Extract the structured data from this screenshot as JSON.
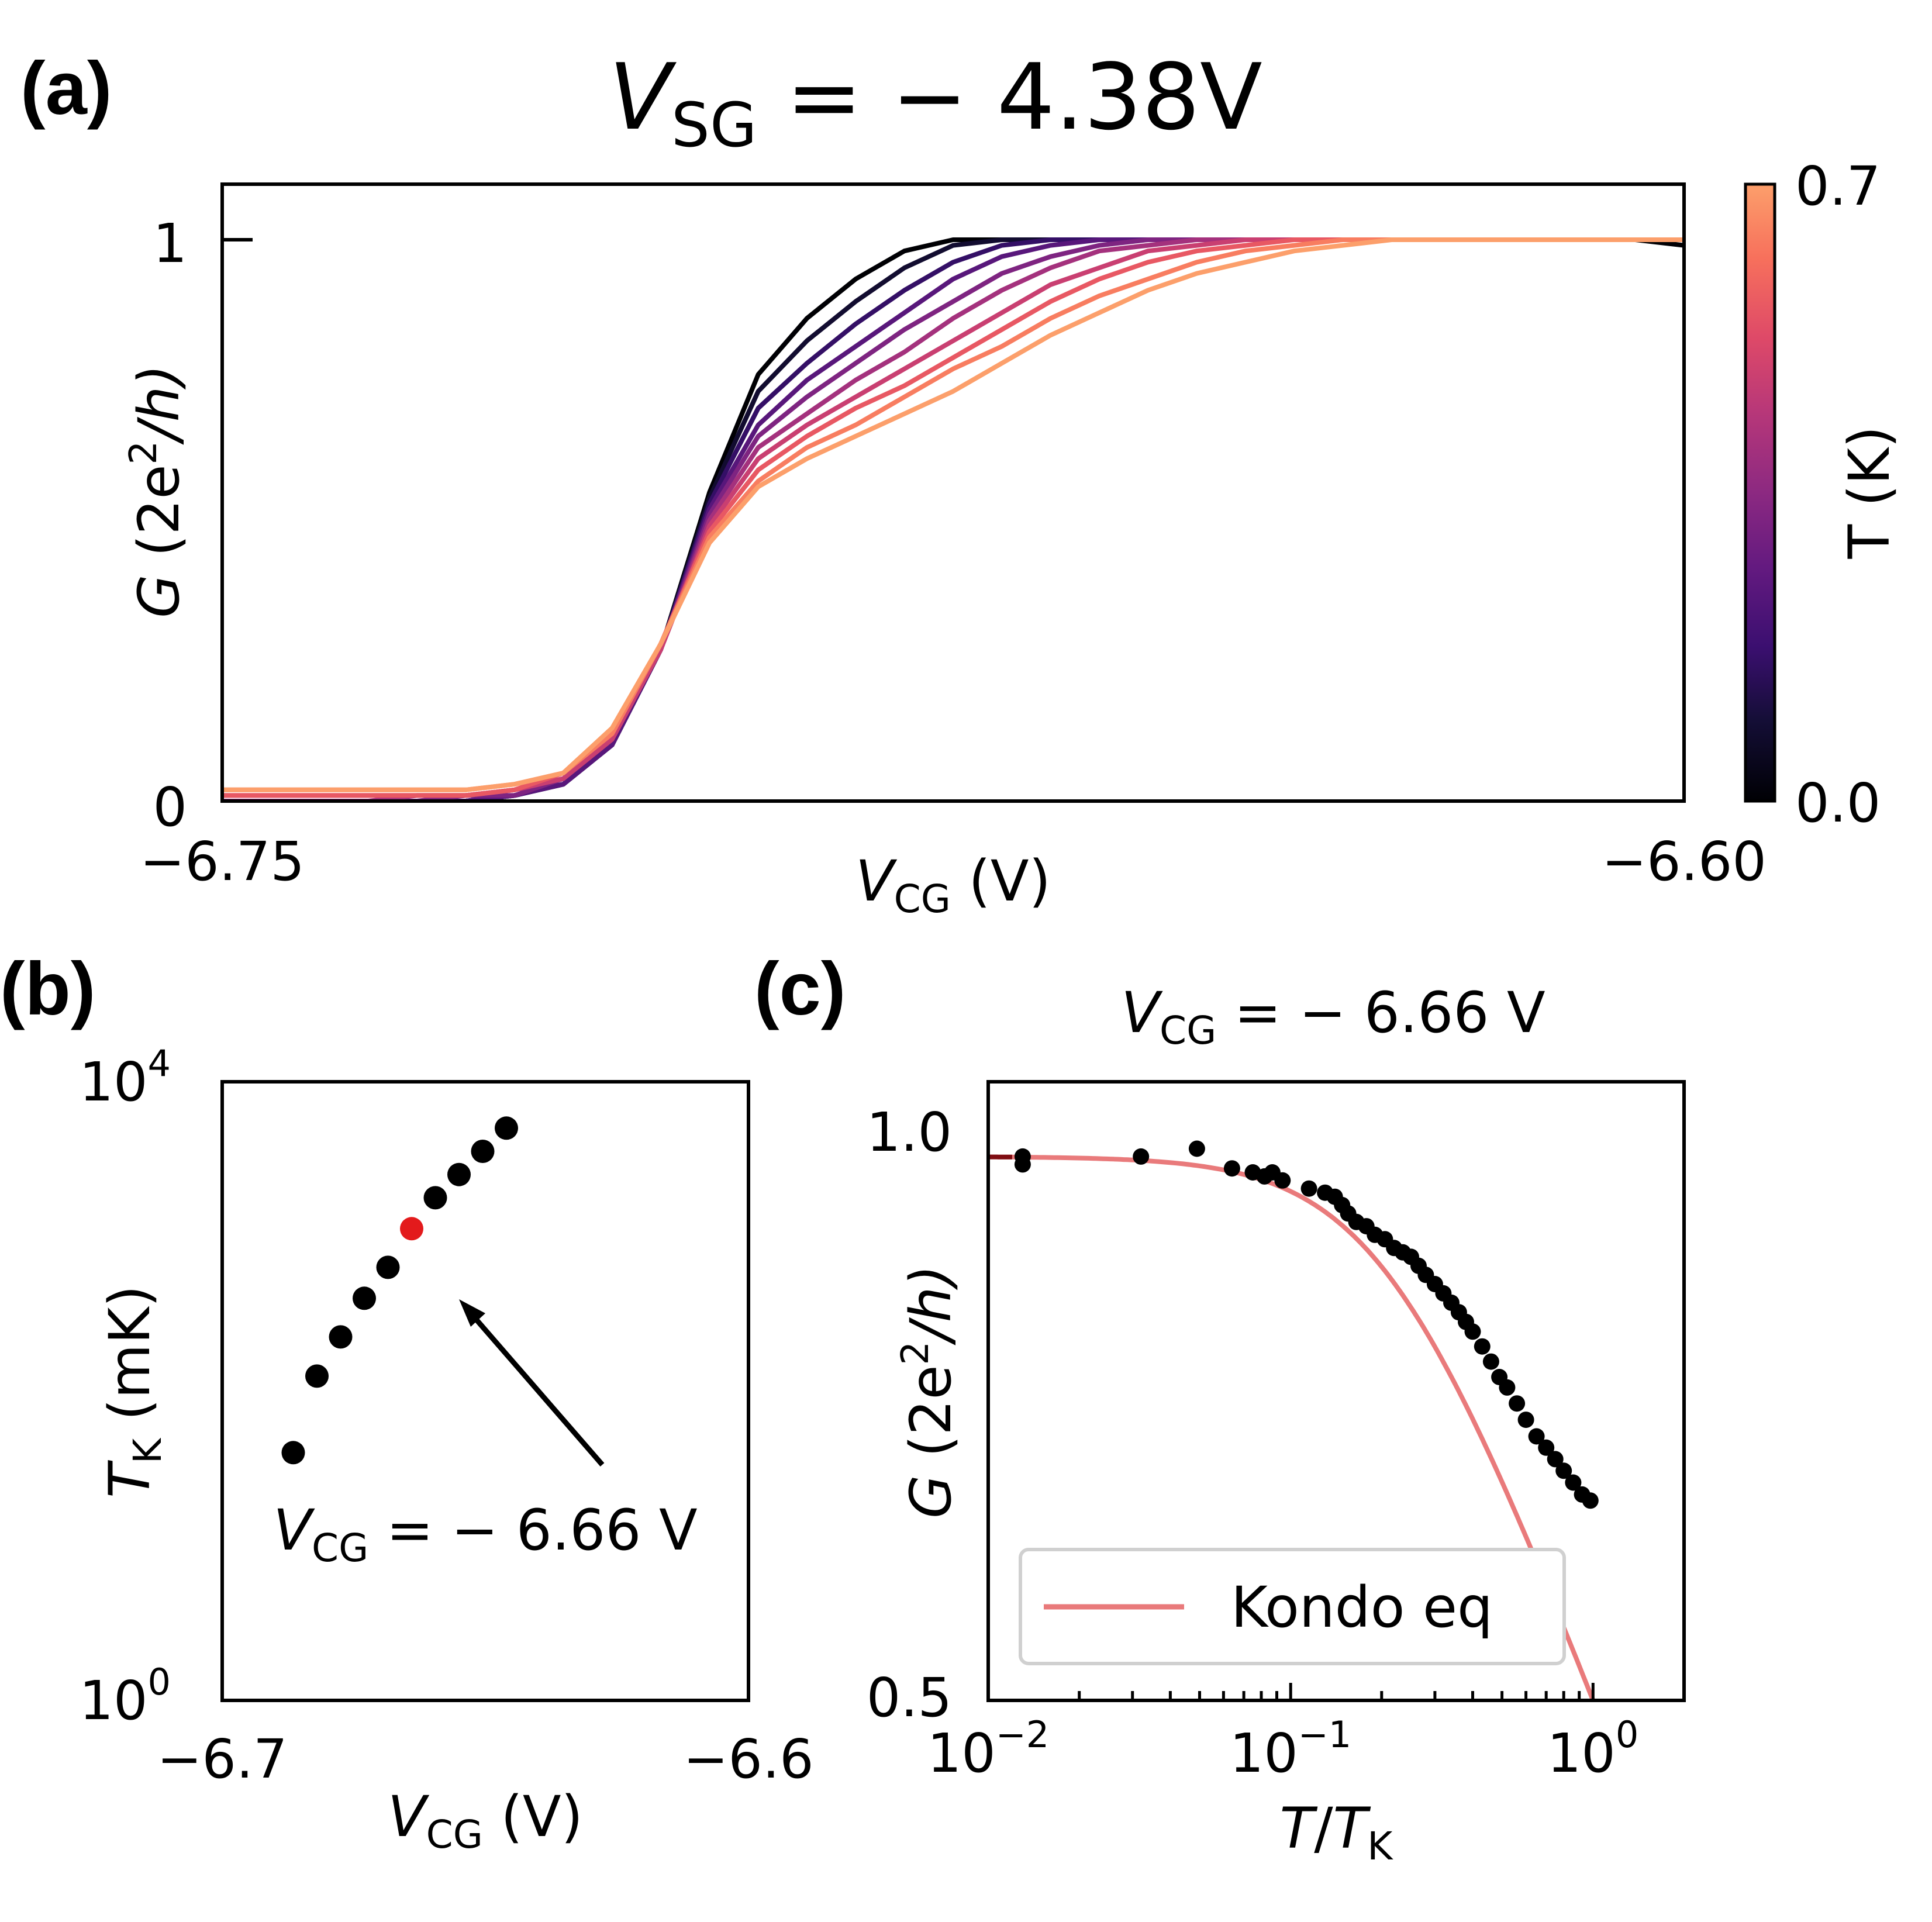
{
  "colors": {
    "temp_low": "#000004",
    "temp_high": "#fc9f6b",
    "fit_light": "#e97a7b",
    "fit_dark": "#7f0d12",
    "highlight_point": "#e31a1c",
    "points": "#000000"
  },
  "panel_a": {
    "label": "(a)",
    "title_var": "V",
    "title_sub": "SG",
    "title_rest": " = − 4.38V",
    "ylabel_var": "G",
    "ylabel_rest": " (2e",
    "ylabel_sup": "2",
    "ylabel_end": "/h)",
    "xlabel_var": "V",
    "xlabel_sub": "CG",
    "xlabel_rest": " (V)",
    "colorbar": {
      "label": "T (K)",
      "tick_max": "0.7",
      "tick_min": "0.0",
      "range": [
        0.0,
        0.7
      ]
    },
    "chart_data": {
      "type": "line",
      "x_range": [
        -6.75,
        -6.6
      ],
      "y_ticks": [
        "0",
        "1"
      ],
      "x_ticks": [
        "−6.75",
        "−6.60"
      ],
      "xlim": [
        -6.75,
        -6.6
      ],
      "ylim": [
        0,
        1.1
      ],
      "series_model": "G(V) = 1/(1+exp(-(V-Vc)/w)) with shoulder broadening at higher T",
      "x": [
        -6.75,
        -6.745,
        -6.74,
        -6.735,
        -6.73,
        -6.725,
        -6.72,
        -6.715,
        -6.71,
        -6.705,
        -6.7,
        -6.695,
        -6.69,
        -6.685,
        -6.68,
        -6.675,
        -6.67,
        -6.665,
        -6.66,
        -6.655,
        -6.65,
        -6.645,
        -6.64,
        -6.635,
        -6.63,
        -6.625,
        -6.62,
        -6.615,
        -6.61,
        -6.605,
        -6.6
      ],
      "series": [
        {
          "T": 0.0,
          "values": [
            0.0,
            0.0,
            0.0,
            0.0,
            0.0,
            0.0,
            0.01,
            0.03,
            0.1,
            0.27,
            0.55,
            0.76,
            0.86,
            0.93,
            0.98,
            1.0,
            1.0,
            1.0,
            1.0,
            1.0,
            1.0,
            1.0,
            1.0,
            1.0,
            1.0,
            1.0,
            1.0,
            1.0,
            1.0,
            1.0,
            0.99
          ]
        },
        {
          "T": 0.08,
          "values": [
            0.0,
            0.0,
            0.0,
            0.0,
            0.0,
            0.0,
            0.01,
            0.03,
            0.1,
            0.27,
            0.54,
            0.73,
            0.82,
            0.89,
            0.95,
            0.99,
            1.0,
            1.0,
            1.0,
            1.0,
            1.0,
            1.0,
            1.0,
            1.0,
            1.0,
            1.0,
            1.0,
            1.0,
            1.0,
            1.0,
            1.0
          ]
        },
        {
          "T": 0.16,
          "values": [
            0.0,
            0.0,
            0.0,
            0.0,
            0.0,
            0.0,
            0.01,
            0.03,
            0.1,
            0.27,
            0.53,
            0.7,
            0.78,
            0.85,
            0.91,
            0.96,
            0.99,
            1.0,
            1.0,
            1.0,
            1.0,
            1.0,
            1.0,
            1.0,
            1.0,
            1.0,
            1.0,
            1.0,
            1.0,
            1.0,
            1.0
          ]
        },
        {
          "T": 0.24,
          "values": [
            0.0,
            0.0,
            0.0,
            0.0,
            0.0,
            0.0,
            0.01,
            0.03,
            0.1,
            0.27,
            0.52,
            0.67,
            0.75,
            0.81,
            0.87,
            0.93,
            0.97,
            0.99,
            1.0,
            1.0,
            1.0,
            1.0,
            1.0,
            1.0,
            1.0,
            1.0,
            1.0,
            1.0,
            1.0,
            1.0,
            1.0
          ]
        },
        {
          "T": 0.32,
          "values": [
            0.0,
            0.0,
            0.0,
            0.0,
            0.0,
            0.01,
            0.01,
            0.04,
            0.11,
            0.27,
            0.51,
            0.65,
            0.72,
            0.78,
            0.84,
            0.89,
            0.94,
            0.97,
            0.99,
            1.0,
            1.0,
            1.0,
            1.0,
            1.0,
            1.0,
            1.0,
            1.0,
            1.0,
            1.0,
            1.0,
            1.0
          ]
        },
        {
          "T": 0.4,
          "values": [
            0.0,
            0.0,
            0.0,
            0.0,
            0.01,
            0.01,
            0.02,
            0.04,
            0.11,
            0.27,
            0.5,
            0.63,
            0.69,
            0.75,
            0.8,
            0.86,
            0.91,
            0.95,
            0.98,
            0.99,
            1.0,
            1.0,
            1.0,
            1.0,
            1.0,
            1.0,
            1.0,
            1.0,
            1.0,
            1.0,
            1.0
          ]
        },
        {
          "T": 0.48,
          "values": [
            0.01,
            0.01,
            0.01,
            0.01,
            0.01,
            0.01,
            0.02,
            0.04,
            0.11,
            0.27,
            0.49,
            0.61,
            0.67,
            0.72,
            0.77,
            0.82,
            0.87,
            0.92,
            0.95,
            0.98,
            0.99,
            1.0,
            1.0,
            1.0,
            1.0,
            1.0,
            1.0,
            1.0,
            1.0,
            1.0,
            1.0
          ]
        },
        {
          "T": 0.56,
          "values": [
            0.01,
            0.01,
            0.01,
            0.01,
            0.01,
            0.01,
            0.02,
            0.05,
            0.12,
            0.28,
            0.48,
            0.59,
            0.65,
            0.7,
            0.74,
            0.79,
            0.84,
            0.89,
            0.93,
            0.96,
            0.98,
            0.99,
            1.0,
            1.0,
            1.0,
            1.0,
            1.0,
            1.0,
            1.0,
            1.0,
            1.0
          ]
        },
        {
          "T": 0.64,
          "values": [
            0.02,
            0.02,
            0.02,
            0.02,
            0.02,
            0.02,
            0.03,
            0.05,
            0.12,
            0.28,
            0.47,
            0.57,
            0.63,
            0.67,
            0.72,
            0.77,
            0.81,
            0.86,
            0.9,
            0.93,
            0.96,
            0.98,
            0.99,
            1.0,
            1.0,
            1.0,
            1.0,
            1.0,
            1.0,
            1.0,
            1.0
          ]
        },
        {
          "T": 0.7,
          "values": [
            0.02,
            0.02,
            0.02,
            0.02,
            0.02,
            0.02,
            0.03,
            0.05,
            0.13,
            0.28,
            0.46,
            0.56,
            0.61,
            0.65,
            0.69,
            0.73,
            0.78,
            0.83,
            0.87,
            0.91,
            0.94,
            0.96,
            0.98,
            0.99,
            1.0,
            1.0,
            1.0,
            1.0,
            1.0,
            1.0,
            1.0
          ]
        }
      ]
    }
  },
  "panel_b": {
    "label": "(b)",
    "ylabel_var": "T",
    "ylabel_sub": "K",
    "ylabel_rest": " (mK)",
    "xlabel_var": "V",
    "xlabel_sub": "CG",
    "xlabel_rest": " (V)",
    "annotation_var": "V",
    "annotation_sub": "CG",
    "annotation_rest": " = − 6.66 V",
    "y_tick_top_base": "10",
    "y_tick_top_exp": "4",
    "y_tick_bot_base": "10",
    "y_tick_bot_exp": "0",
    "x_ticks": [
      "−6.7",
      "−6.6"
    ],
    "chart_data": {
      "type": "scatter",
      "xlim": [
        -6.7,
        -6.6
      ],
      "ylim_log10": [
        0,
        4
      ],
      "y_scale": "log",
      "x": [
        -6.7,
        -6.695,
        -6.69,
        -6.685,
        -6.68,
        -6.675,
        -6.67,
        -6.665,
        -6.66,
        -6.655
      ],
      "y": [
        40,
        125,
        224,
        398,
        631,
        1122,
        1778,
        2512,
        3548,
        5012
      ],
      "highlight_index": 5
    }
  },
  "panel_c": {
    "label": "(c)",
    "title_var": "V",
    "title_sub": "CG",
    "title_rest": " = − 6.66 V",
    "ylabel_var": "G",
    "ylabel_rest": " (2e",
    "ylabel_sup": "2",
    "ylabel_end": "/h)",
    "xlabel_var": "T",
    "xlabel_mid": "/",
    "xlabel_var2": "T",
    "xlabel_sub": "K",
    "legend_label": "Kondo eq",
    "y_ticks": [
      "1.0",
      "0.5"
    ],
    "x_tick_labels": [
      {
        "base": "10",
        "exp": "−2"
      },
      {
        "base": "10",
        "exp": "−1"
      },
      {
        "base": "10",
        "exp": "0"
      }
    ],
    "chart_data": {
      "type": "scatter",
      "x_scale": "log",
      "y_scale": "log",
      "xlim": [
        0.01,
        2.0
      ],
      "ylim": [
        0.5,
        1.1
      ],
      "points_x": [
        0.013,
        0.013,
        0.032,
        0.049,
        0.064,
        0.075,
        0.082,
        0.087,
        0.094,
        0.115,
        0.13,
        0.14,
        0.148,
        0.155,
        0.165,
        0.178,
        0.19,
        0.205,
        0.22,
        0.235,
        0.25,
        0.265,
        0.28,
        0.3,
        0.32,
        0.34,
        0.36,
        0.38,
        0.4,
        0.43,
        0.46,
        0.49,
        0.52,
        0.56,
        0.6,
        0.65,
        0.7,
        0.75,
        0.8,
        0.86,
        0.92,
        0.98
      ],
      "points_y": [
        1.0,
        0.99,
        1.0,
        1.01,
        0.985,
        0.98,
        0.975,
        0.98,
        0.97,
        0.96,
        0.955,
        0.95,
        0.94,
        0.93,
        0.92,
        0.915,
        0.905,
        0.9,
        0.89,
        0.885,
        0.88,
        0.87,
        0.86,
        0.85,
        0.84,
        0.83,
        0.82,
        0.81,
        0.8,
        0.785,
        0.77,
        0.755,
        0.745,
        0.73,
        0.715,
        0.7,
        0.69,
        0.68,
        0.67,
        0.66,
        0.65,
        0.645
      ],
      "fit_model": "G = (1 + (2^(1/0.22)-1)(T/T_K)^2)^(-0.22)",
      "fit_s": 0.22,
      "fit_x_range": [
        0.01,
        2.0
      ],
      "dark_x_range": [
        0.01,
        0.012
      ]
    }
  }
}
